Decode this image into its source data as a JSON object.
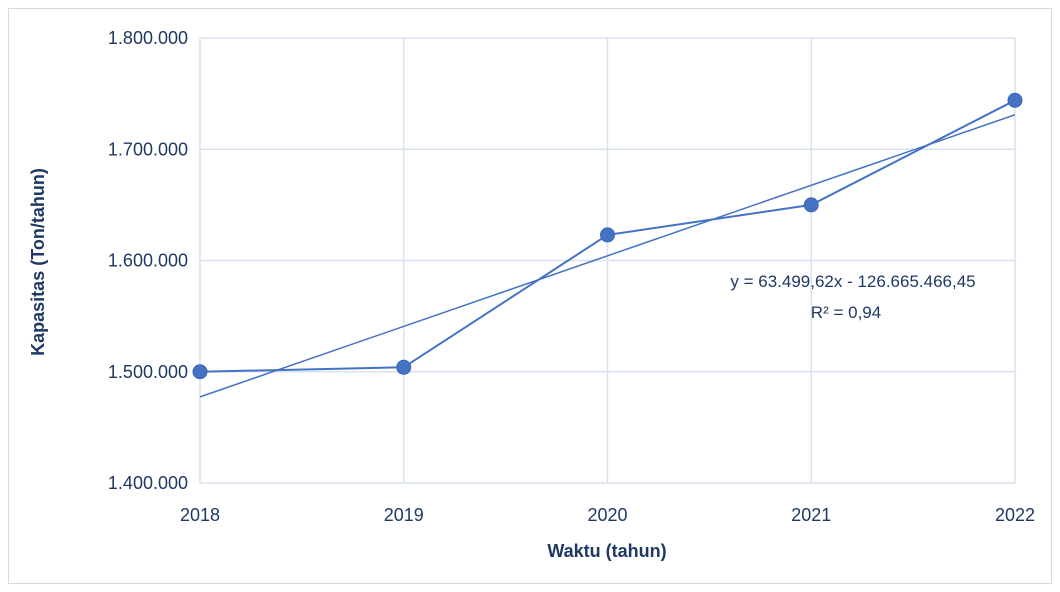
{
  "chart_data": {
    "type": "scatter",
    "title": "",
    "xlabel": "Waktu (tahun)",
    "ylabel": "Kapasitas (Ton/tahun)",
    "x": [
      2018,
      2019,
      2020,
      2021,
      2022
    ],
    "series": [
      {
        "values": [
          1500000,
          1504000,
          1623000,
          1650000,
          1744000
        ],
        "color": "#4472c4",
        "style": "line with markers"
      }
    ],
    "trendline": {
      "type": "linear",
      "equation": "y = 63.499,62x - 126.665.466,45",
      "r2_label": "R² = 0,94",
      "color": "#4472c4"
    },
    "xlim": [
      2018,
      2022
    ],
    "ylim": [
      1400000,
      1800000
    ],
    "x_ticks": [
      "2018",
      "2019",
      "2020",
      "2021",
      "2022"
    ],
    "y_ticks": [
      "1.400.000",
      "1.500.000",
      "1.600.000",
      "1.700.000",
      "1.800.000"
    ],
    "grid": true,
    "legend": "none"
  }
}
